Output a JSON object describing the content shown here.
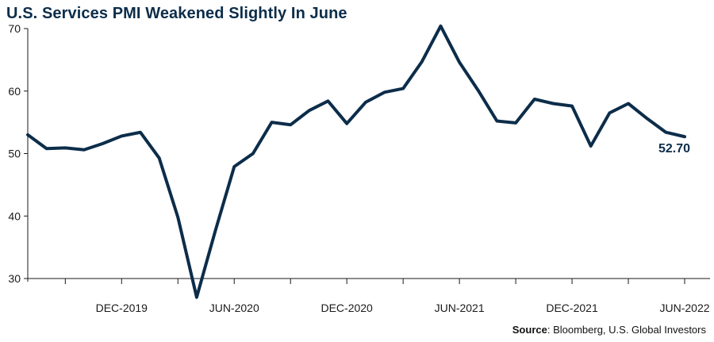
{
  "chart_data": {
    "type": "line",
    "title": "U.S. Services PMI Weakened Slightly In June",
    "xlabel": "",
    "ylabel": "",
    "ylim": [
      30,
      70
    ],
    "yticks": [
      30,
      40,
      50,
      60,
      70
    ],
    "x_tick_labels": [
      {
        "index": 5,
        "label": "DEC-2019"
      },
      {
        "index": 11,
        "label": "JUN-2020"
      },
      {
        "index": 17,
        "label": "DEC-2020"
      },
      {
        "index": 23,
        "label": "JUN-2021"
      },
      {
        "index": 29,
        "label": "DEC-2021"
      },
      {
        "index": 35,
        "label": "JUN-2022"
      }
    ],
    "minor_tick_indices": [
      2,
      8,
      14,
      20,
      26,
      32
    ],
    "grid": false,
    "series": [
      {
        "color": "#0c2d4a",
        "values": [
          53.0,
          50.8,
          50.9,
          50.6,
          51.6,
          52.8,
          53.4,
          49.3,
          39.8,
          27.0,
          37.7,
          47.9,
          50.0,
          55.0,
          54.6,
          56.9,
          58.4,
          54.8,
          58.2,
          59.8,
          60.4,
          64.7,
          70.4,
          64.6,
          60.1,
          55.2,
          54.9,
          58.7,
          58.0,
          57.6,
          51.2,
          56.5,
          58.0,
          55.6,
          53.4,
          52.7
        ]
      }
    ],
    "last_value_label": "52.70",
    "source_label": "Source",
    "source_text": ": Bloomberg, U.S. Global Investors"
  }
}
